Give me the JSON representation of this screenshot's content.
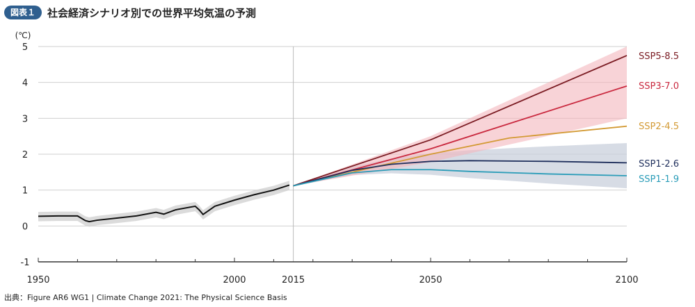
{
  "header": {
    "badge": "図表１",
    "title": "社会経済シナリオ別での世界平均気温の予測"
  },
  "source": "出典：Figure AR6 WG1 | Climate Change 2021: The Physical Science Basis",
  "chart_data": {
    "type": "line",
    "yunit": "(℃)",
    "xlim": [
      1950,
      2100
    ],
    "ylim": [
      -1,
      5
    ],
    "xticks": [
      "1950",
      "2000",
      "2015",
      "2050",
      "2100"
    ],
    "yticks": [
      "-1",
      "0",
      "1",
      "2",
      "3",
      "4",
      "5"
    ],
    "grid": "horizontal",
    "colors": {
      "historical": "#111111",
      "ssp585": "#7a1b22",
      "ssp370": "#c9283e",
      "ssp245": "#d39a34",
      "ssp126": "#1f2f5c",
      "ssp119": "#2a9cb8",
      "band_high": "#f4b6bd",
      "band_low": "#c9d0dc",
      "band_hist": "#cfcfcf"
    },
    "historical": {
      "x": [
        1950,
        1955,
        1960,
        1962,
        1963,
        1965,
        1970,
        1975,
        1980,
        1982,
        1985,
        1990,
        1991,
        1992,
        1995,
        2000,
        2005,
        2010,
        2014
      ],
      "y": [
        0.27,
        0.28,
        0.28,
        0.15,
        0.12,
        0.16,
        0.22,
        0.28,
        0.38,
        0.33,
        0.45,
        0.55,
        0.45,
        0.32,
        0.55,
        0.72,
        0.87,
        1.0,
        1.14
      ]
    },
    "series": [
      {
        "name": "SSP5-8.5",
        "x": [
          2015,
          2050,
          2100
        ],
        "y": [
          1.12,
          2.4,
          4.75
        ]
      },
      {
        "name": "SSP3-7.0",
        "x": [
          2015,
          2050,
          2100
        ],
        "y": [
          1.12,
          2.15,
          3.9
        ]
      },
      {
        "name": "SSP2-4.5",
        "x": [
          2015,
          2030,
          2050,
          2070,
          2100
        ],
        "y": [
          1.12,
          1.5,
          2.0,
          2.45,
          2.78
        ]
      },
      {
        "name": "SSP1-2.6",
        "x": [
          2015,
          2030,
          2040,
          2050,
          2060,
          2080,
          2100
        ],
        "y": [
          1.12,
          1.55,
          1.72,
          1.8,
          1.82,
          1.8,
          1.76
        ]
      },
      {
        "name": "SSP1-1.9",
        "x": [
          2015,
          2030,
          2040,
          2050,
          2060,
          2080,
          2100
        ],
        "y": [
          1.12,
          1.48,
          1.57,
          1.57,
          1.52,
          1.45,
          1.4
        ]
      }
    ]
  }
}
